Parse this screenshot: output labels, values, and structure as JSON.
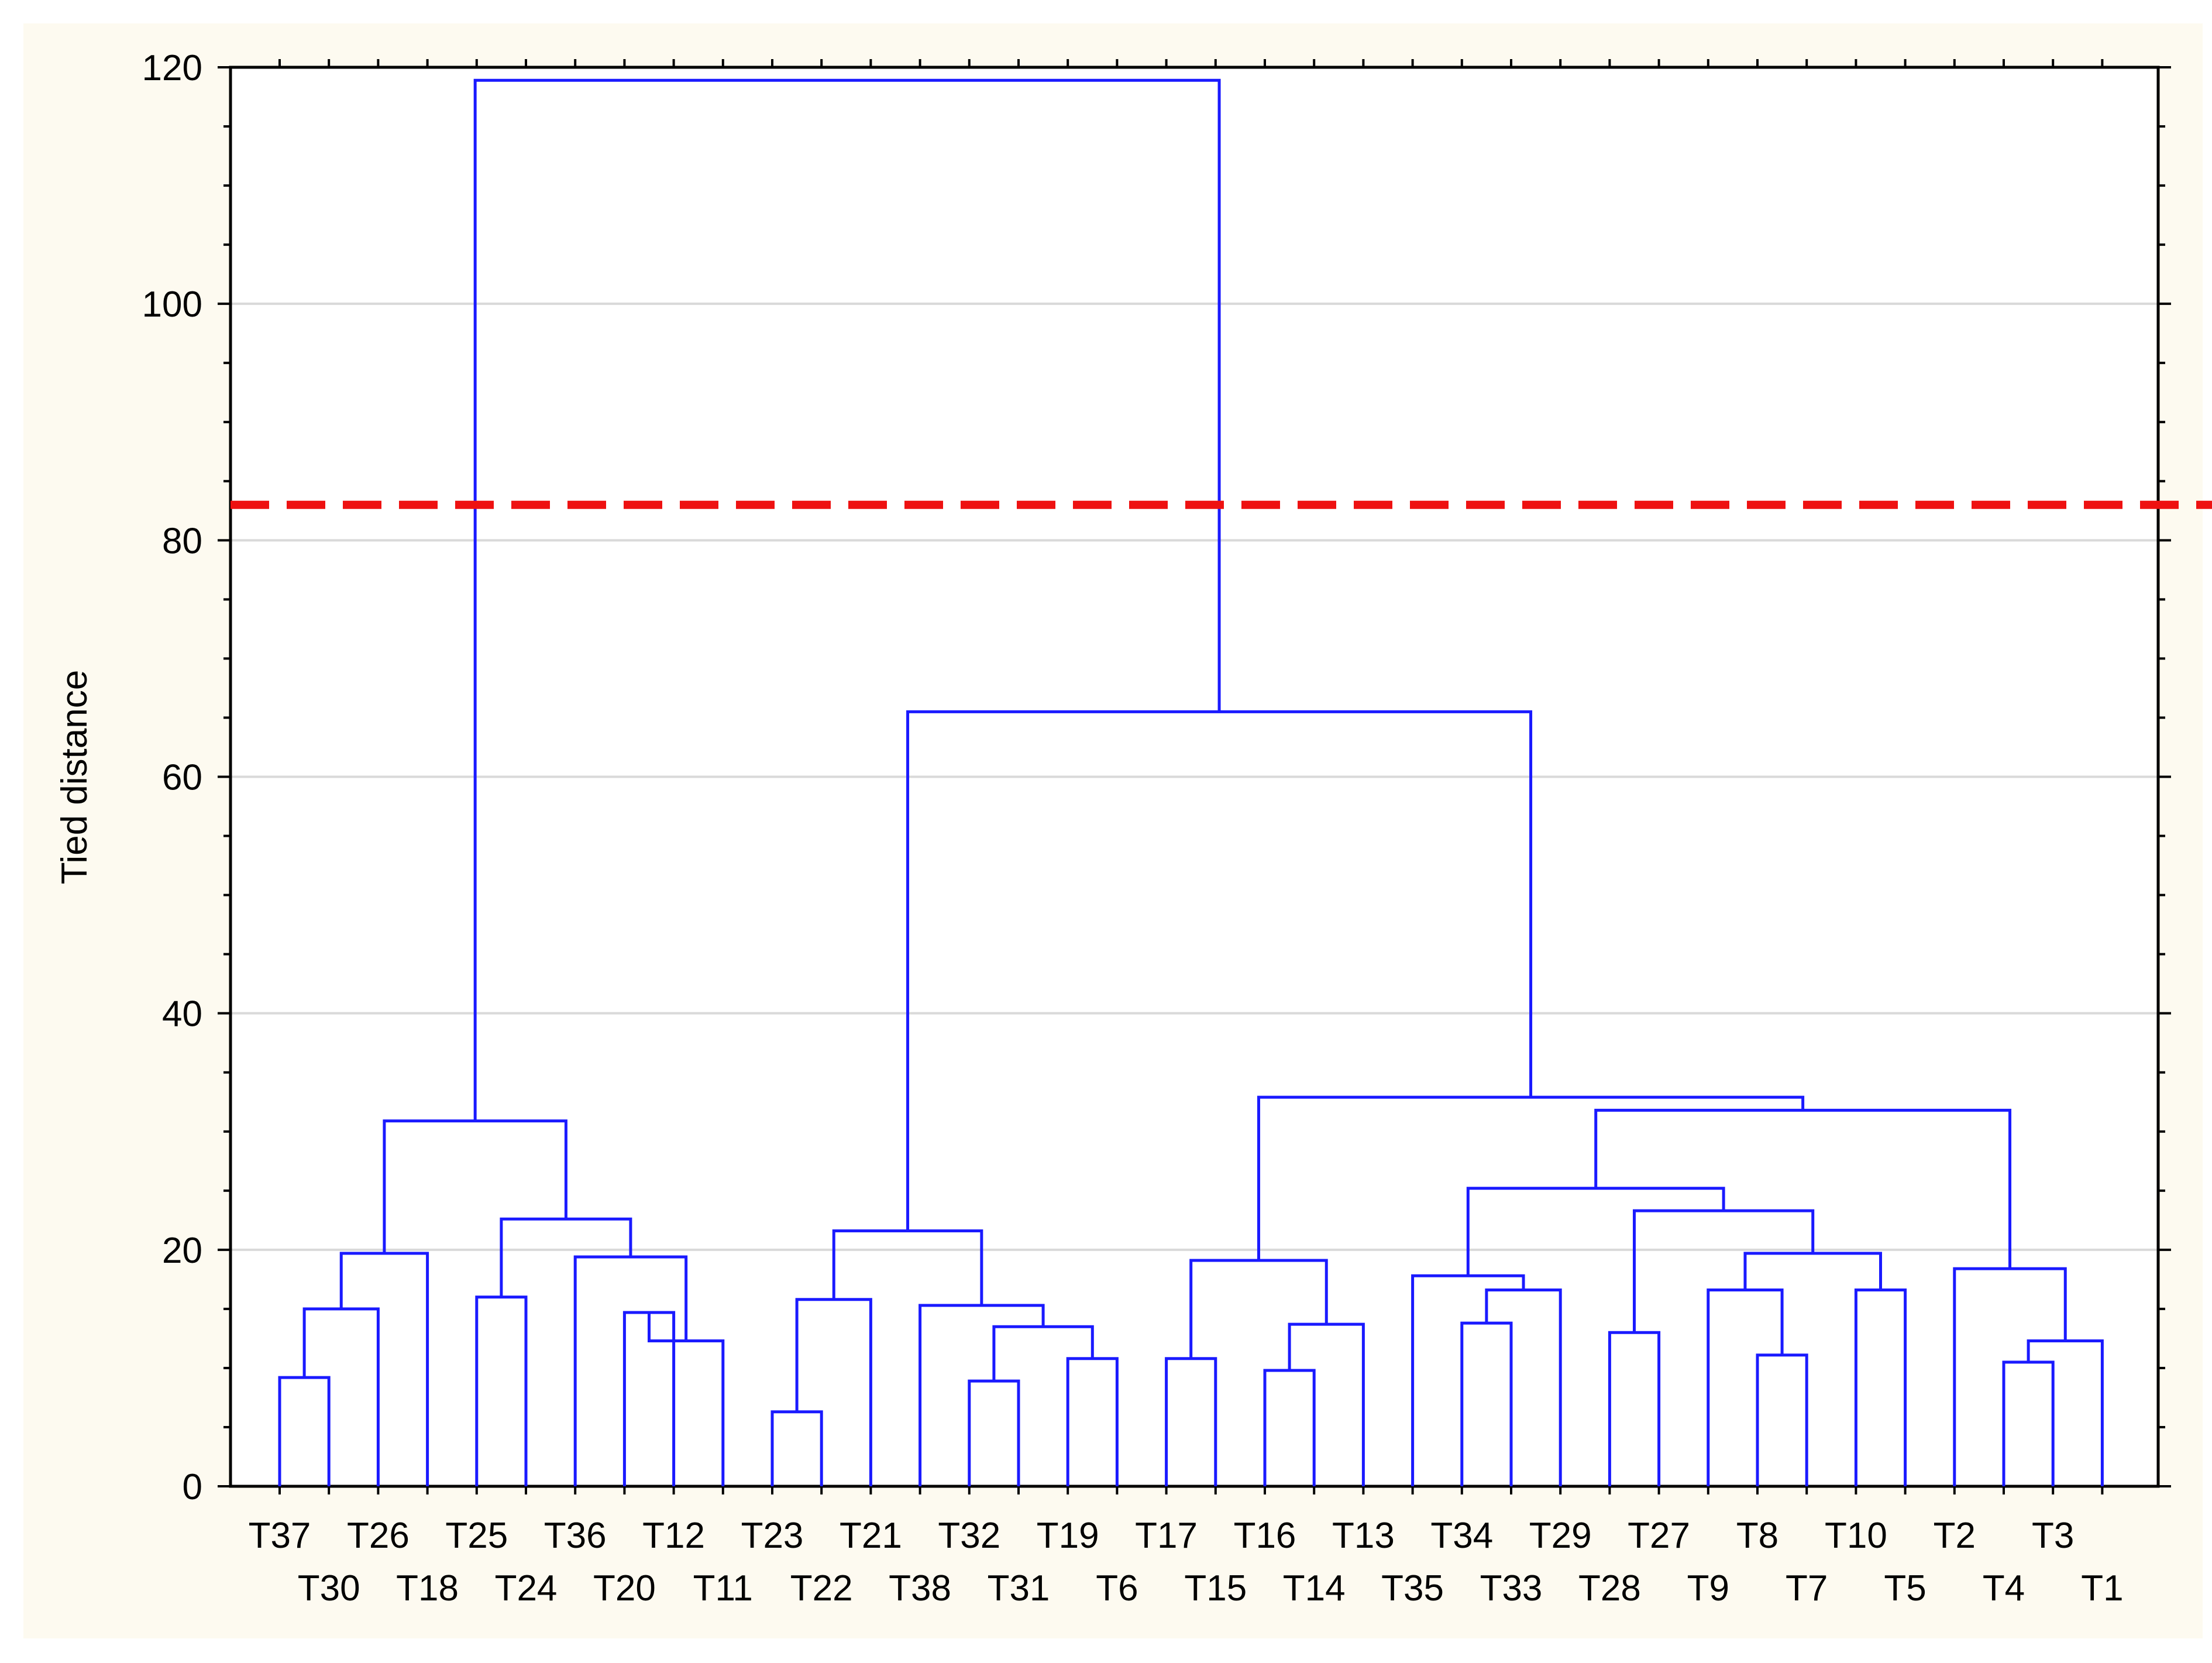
{
  "chart_data": {
    "type": "dendrogram",
    "ylabel": "Tied distance",
    "ylim": [
      0,
      120
    ],
    "yticks": [
      0,
      20,
      40,
      60,
      80,
      100,
      120
    ],
    "grid": true,
    "cut_line": {
      "value": 83,
      "color": "#ee1111",
      "style": "dashed"
    },
    "colors": {
      "link": "#1a1aff",
      "background": "#fdfaf0",
      "plot_background": "#ffffff",
      "grid": "#d9d9d9"
    },
    "leaves": [
      "T37",
      "T30",
      "T26",
      "T18",
      "T25",
      "T24",
      "T36",
      "T20",
      "T12",
      "T11",
      "T23",
      "T22",
      "T21",
      "T38",
      "T32",
      "T31",
      "T19",
      "T6",
      "T17",
      "T15",
      "T16",
      "T14",
      "T13",
      "T35",
      "T34",
      "T33",
      "T29",
      "T28",
      "T27",
      "T9",
      "T8",
      "T7",
      "T10",
      "T5",
      "T2",
      "T4",
      "T3",
      "T1"
    ],
    "merges": [
      {
        "id": "m1",
        "a": "T37",
        "b": "T30",
        "h": 9.2
      },
      {
        "id": "m2",
        "a": "m1",
        "b": "T26",
        "h": 15.0
      },
      {
        "id": "m3",
        "a": "m2",
        "b": "T18",
        "h": 19.7
      },
      {
        "id": "m4",
        "a": "T20",
        "b": "T12",
        "h": 14.7
      },
      {
        "id": "m5",
        "a": "m4",
        "b": "T11",
        "h": 12.3
      },
      {
        "id": "m6",
        "a": "T36",
        "b": "m5",
        "h": 19.4
      },
      {
        "id": "m7",
        "a": "T25",
        "b": "T24",
        "h": 16.0
      },
      {
        "id": "m8",
        "a": "m7",
        "b": "m6",
        "h": 22.6
      },
      {
        "id": "m9",
        "a": "m3",
        "b": "m8",
        "h": 30.9
      },
      {
        "id": "m10",
        "a": "T23",
        "b": "T22",
        "h": 6.3
      },
      {
        "id": "m11",
        "a": "m10",
        "b": "T21",
        "h": 15.8
      },
      {
        "id": "m12",
        "a": "T32",
        "b": "T31",
        "h": 8.9
      },
      {
        "id": "m13",
        "a": "T19",
        "b": "T6",
        "h": 10.8
      },
      {
        "id": "m14",
        "a": "m12",
        "b": "m13",
        "h": 13.5
      },
      {
        "id": "m15",
        "a": "T38",
        "b": "m14",
        "h": 15.3
      },
      {
        "id": "m16",
        "a": "m11",
        "b": "m15",
        "h": 21.6
      },
      {
        "id": "m17",
        "a": "T17",
        "b": "T15",
        "h": 10.8
      },
      {
        "id": "m18",
        "a": "T16",
        "b": "T14",
        "h": 9.8
      },
      {
        "id": "m19",
        "a": "m18",
        "b": "T13",
        "h": 13.7
      },
      {
        "id": "m20",
        "a": "m17",
        "b": "m19",
        "h": 19.1
      },
      {
        "id": "m21",
        "a": "T34",
        "b": "T33",
        "h": 13.8
      },
      {
        "id": "m22",
        "a": "m21",
        "b": "T29",
        "h": 16.6
      },
      {
        "id": "m23",
        "a": "T35",
        "b": "m22",
        "h": 17.8
      },
      {
        "id": "m24",
        "a": "T8",
        "b": "T7",
        "h": 11.1
      },
      {
        "id": "m25",
        "a": "T9",
        "b": "m24",
        "h": 16.6
      },
      {
        "id": "m26",
        "a": "T10",
        "b": "T5",
        "h": 16.6
      },
      {
        "id": "m27",
        "a": "m25",
        "b": "m26",
        "h": 19.7
      },
      {
        "id": "m28",
        "a": "T27",
        "b": "T28",
        "h": 13.0
      },
      {
        "id": "m29",
        "a": "m28",
        "b": "m27",
        "h": 23.3
      },
      {
        "id": "m30",
        "a": "m23",
        "b": "m29",
        "h": 25.2
      },
      {
        "id": "m31",
        "a": "T4",
        "b": "T3",
        "h": 10.5
      },
      {
        "id": "m32",
        "a": "m31",
        "b": "T1",
        "h": 12.3
      },
      {
        "id": "m33",
        "a": "T2",
        "b": "m32",
        "h": 18.4
      },
      {
        "id": "m34",
        "a": "m30",
        "b": "m33",
        "h": 31.8
      },
      {
        "id": "m35",
        "a": "m20",
        "b": "m34",
        "h": 32.9
      },
      {
        "id": "m36",
        "a": "m16",
        "b": "m35",
        "h": 65.5
      },
      {
        "id": "m37",
        "a": "m9",
        "b": "m36",
        "h": 118.9
      }
    ]
  }
}
